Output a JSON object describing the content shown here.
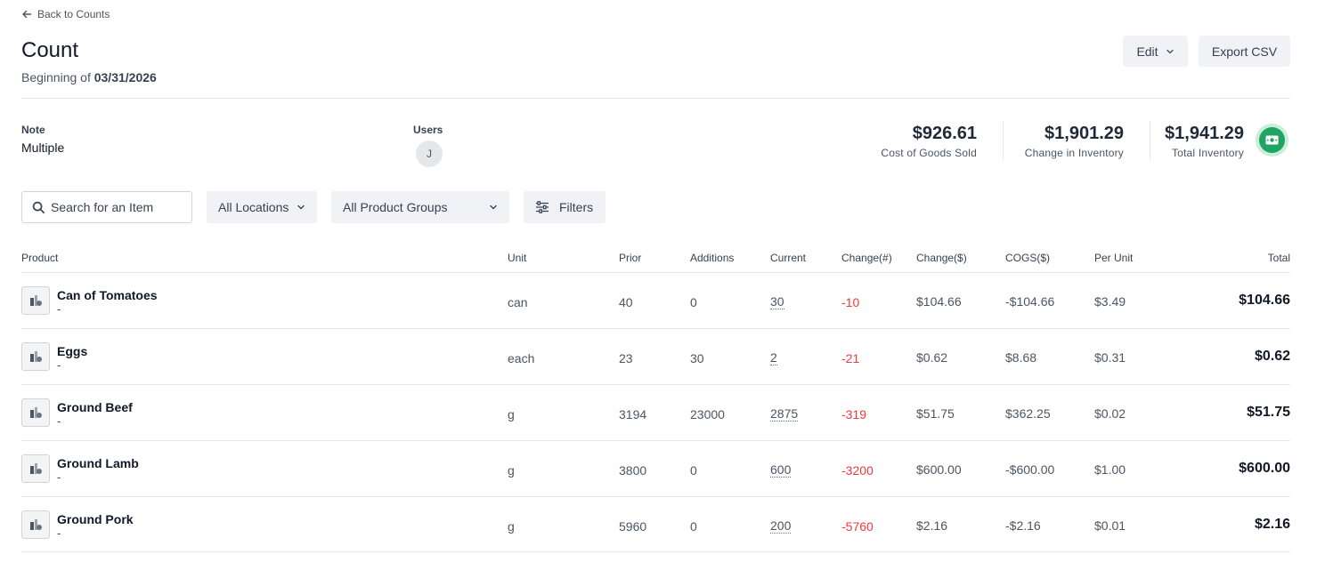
{
  "header": {
    "back_label": "Back to Counts",
    "title": "Count",
    "subtitle_prefix": "Beginning of",
    "subtitle_date": "03/31/2026",
    "edit_label": "Edit",
    "export_label": "Export CSV"
  },
  "meta": {
    "note_label": "Note",
    "note_value": "Multiple",
    "users_label": "Users",
    "user_initial": "J"
  },
  "stats": {
    "cogs_value": "$926.61",
    "cogs_label": "Cost of Goods Sold",
    "change_value": "$1,901.29",
    "change_label": "Change in Inventory",
    "total_value": "$1,941.29",
    "total_label": "Total Inventory"
  },
  "toolbar": {
    "search_placeholder": "Search for an Item",
    "locations_label": "All Locations",
    "groups_label": "All Product Groups",
    "filters_label": "Filters"
  },
  "table": {
    "columns": [
      "Product",
      "Unit",
      "Prior",
      "Additions",
      "Current",
      "Change(#)",
      "Change($)",
      "COGS($)",
      "Per Unit",
      "Total"
    ],
    "rows": [
      {
        "name": "Can of Tomatoes",
        "sub": "-",
        "unit": "can",
        "prior": "40",
        "additions": "0",
        "current": "30",
        "change_num": "-10",
        "change_dollar": "$104.66",
        "cogs": "-$104.66",
        "per_unit": "$3.49",
        "total": "$104.66"
      },
      {
        "name": "Eggs",
        "sub": "-",
        "unit": "each",
        "prior": "23",
        "additions": "30",
        "current": "2",
        "change_num": "-21",
        "change_dollar": "$0.62",
        "cogs": "$8.68",
        "per_unit": "$0.31",
        "total": "$0.62"
      },
      {
        "name": "Ground Beef",
        "sub": "-",
        "unit": "g",
        "prior": "3194",
        "additions": "23000",
        "current": "2875",
        "change_num": "-319",
        "change_dollar": "$51.75",
        "cogs": "$362.25",
        "per_unit": "$0.02",
        "total": "$51.75"
      },
      {
        "name": "Ground Lamb",
        "sub": "-",
        "unit": "g",
        "prior": "3800",
        "additions": "0",
        "current": "600",
        "change_num": "-3200",
        "change_dollar": "$600.00",
        "cogs": "-$600.00",
        "per_unit": "$1.00",
        "total": "$600.00"
      },
      {
        "name": "Ground Pork",
        "sub": "-",
        "unit": "g",
        "prior": "5960",
        "additions": "0",
        "current": "200",
        "change_num": "-5760",
        "change_dollar": "$2.16",
        "cogs": "-$2.16",
        "per_unit": "$0.01",
        "total": "$2.16"
      }
    ]
  },
  "colors": {
    "negative": "#ef3b3b",
    "accent_green": "#1fa463",
    "button_bg": "#f0f2f5"
  },
  "icons": [
    "arrow-left-icon",
    "chevron-down-icon",
    "search-icon",
    "sliders-icon",
    "money-icon",
    "product-image-placeholder-icon"
  ]
}
